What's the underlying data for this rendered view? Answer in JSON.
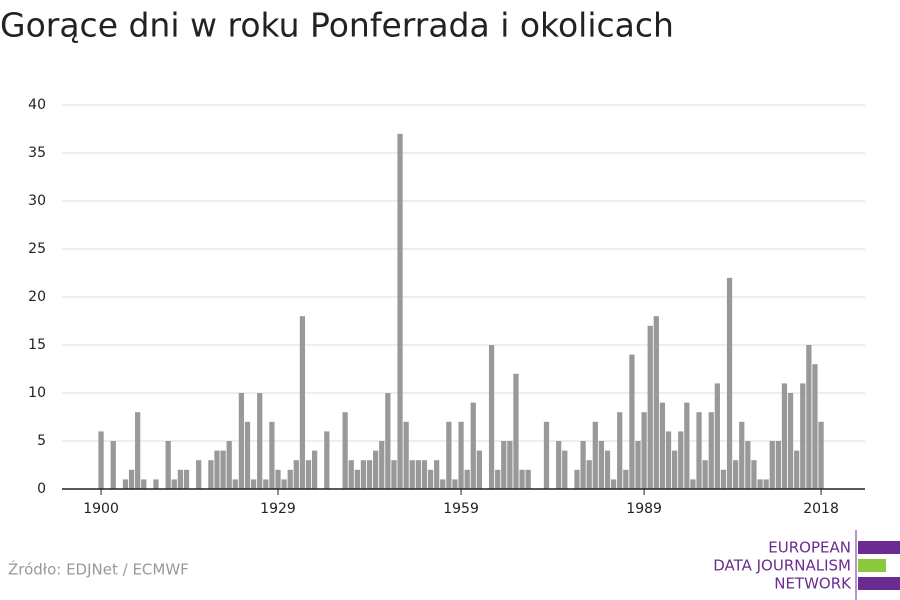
{
  "chart_data": {
    "type": "bar",
    "title": "Gorące dni w roku Ponferrada i okolicach",
    "source": "Źródło: EDJNet / ECMWF",
    "logo": [
      "EUROPEAN",
      "DATA JOURNALISM",
      "NETWORK"
    ],
    "color": "#999999",
    "x": [
      1900,
      1901,
      1902,
      1903,
      1904,
      1905,
      1906,
      1907,
      1908,
      1909,
      1910,
      1911,
      1912,
      1913,
      1914,
      1915,
      1916,
      1917,
      1918,
      1919,
      1920,
      1921,
      1922,
      1923,
      1924,
      1925,
      1926,
      1927,
      1928,
      1929,
      1930,
      1931,
      1932,
      1933,
      1934,
      1935,
      1936,
      1937,
      1938,
      1939,
      1940,
      1941,
      1942,
      1943,
      1944,
      1945,
      1946,
      1947,
      1948,
      1949,
      1950,
      1951,
      1952,
      1953,
      1954,
      1955,
      1956,
      1957,
      1958,
      1959,
      1960,
      1961,
      1962,
      1963,
      1964,
      1965,
      1966,
      1967,
      1968,
      1969,
      1970,
      1971,
      1972,
      1973,
      1974,
      1975,
      1976,
      1977,
      1978,
      1979,
      1980,
      1981,
      1982,
      1983,
      1984,
      1985,
      1986,
      1987,
      1988,
      1989,
      1990,
      1991,
      1992,
      1993,
      1994,
      1995,
      1996,
      1997,
      1998,
      1999,
      2000,
      2001,
      2002,
      2003,
      2004,
      2005,
      2006,
      2007,
      2008,
      2009,
      2010,
      2011,
      2012,
      2013,
      2014,
      2015,
      2016,
      2017,
      2018
    ],
    "values": [
      6,
      0,
      5,
      0,
      1,
      2,
      8,
      1,
      0,
      1,
      0,
      5,
      1,
      2,
      2,
      0,
      3,
      0,
      3,
      4,
      4,
      5,
      1,
      10,
      7,
      1,
      10,
      1,
      7,
      2,
      1,
      2,
      3,
      18,
      3,
      4,
      0,
      6,
      0,
      0,
      8,
      3,
      2,
      3,
      3,
      4,
      5,
      10,
      3,
      37,
      7,
      3,
      3,
      3,
      2,
      3,
      1,
      7,
      1,
      7,
      2,
      9,
      4,
      0,
      15,
      2,
      5,
      5,
      12,
      2,
      2,
      0,
      0,
      7,
      0,
      5,
      4,
      0,
      2,
      5,
      3,
      7,
      5,
      4,
      1,
      8,
      2,
      14,
      5,
      8,
      17,
      18,
      9,
      6,
      4,
      6,
      9,
      1,
      8,
      3,
      8,
      11,
      2,
      22,
      3,
      7,
      5,
      3,
      1,
      1,
      5,
      5,
      11,
      10,
      4,
      11,
      15,
      13,
      7
    ],
    "xlim": [
      1893.6,
      2025.2
    ],
    "xticks": [
      1900,
      1929,
      1959,
      1989,
      2018
    ],
    "ylim": [
      0,
      40
    ],
    "yticks": [
      0,
      5,
      10,
      15,
      20,
      25,
      30,
      35,
      40
    ],
    "grid": true
  }
}
